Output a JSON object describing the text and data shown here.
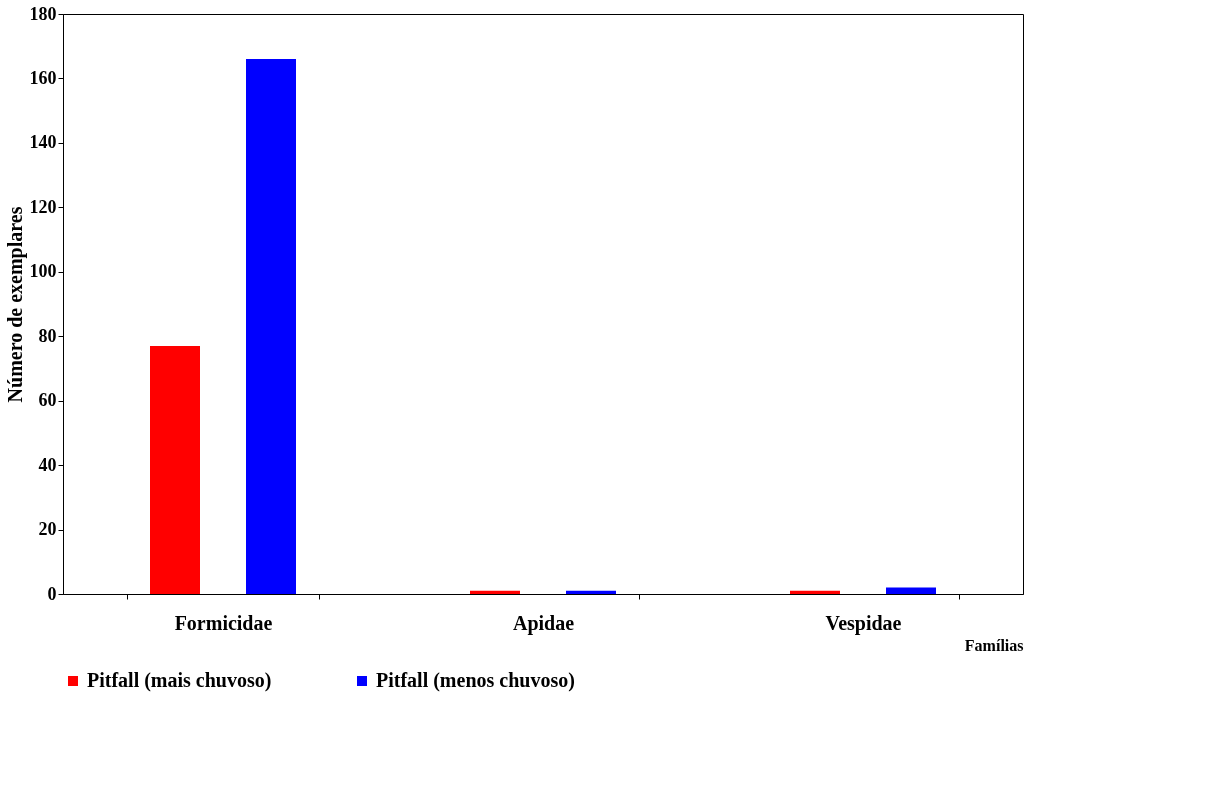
{
  "chart_data": {
    "type": "bar",
    "xlabel": "Famílias",
    "ylabel": "Número de exemplares",
    "categories": [
      "Formicidae",
      "Apidae",
      "Vespidae"
    ],
    "series": [
      {
        "name": "Pitfall (mais chuvoso)",
        "color": "#ff0000",
        "values": [
          77,
          1,
          1
        ]
      },
      {
        "name": "Pitfall (menos chuvoso)",
        "color": "#0000ff",
        "values": [
          166,
          1,
          2
        ]
      }
    ],
    "ylim": [
      0,
      180
    ],
    "yticks": [
      0,
      20,
      40,
      60,
      80,
      100,
      120,
      140,
      160,
      180
    ],
    "grid": false,
    "legend": "bottom"
  }
}
